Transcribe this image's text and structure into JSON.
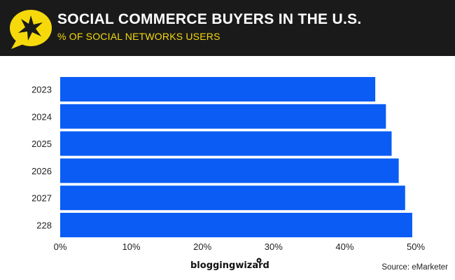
{
  "header": {
    "title": "SOCIAL COMMERCE BUYERS IN THE U.S.",
    "subtitle": "% OF SOCIAL NETWORKS USERS",
    "background": "#1a1a1a",
    "accent": "#f5d90a",
    "logo_icon": "star-burst-icon"
  },
  "chart_data": {
    "type": "bar",
    "orientation": "horizontal",
    "categories": [
      "2023",
      "2024",
      "2025",
      "2026",
      "2027",
      "228"
    ],
    "values": [
      44.3,
      45.8,
      46.6,
      47.6,
      48.5,
      49.5
    ],
    "xlim": [
      0,
      50
    ],
    "xticks": [
      "0%",
      "10%",
      "20%",
      "30%",
      "40%",
      "50%"
    ],
    "bar_color": "#0a5cf5",
    "grid": false,
    "legend": "none"
  },
  "footer": {
    "brand": "bloggingwizard",
    "source": "Source: eMarketer"
  }
}
